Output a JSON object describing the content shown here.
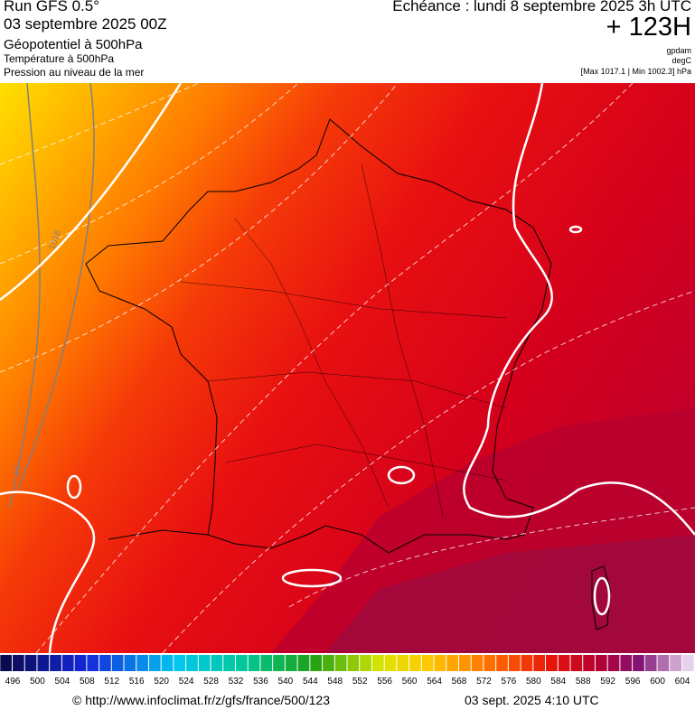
{
  "header": {
    "run": "Run GFS 0.5°",
    "date": "03 septembre 2025 00Z",
    "field1": "Géopotentiel à 500hPa",
    "field2": "Température à 500hPa",
    "field3": "Pression au niveau de la mer",
    "valid": "Echéance : lundi 8 septembre 2025 3h UTC",
    "lead": "+ 123H",
    "unit1": "gpdam",
    "unit2": "degC",
    "range": "[Max 1017.1 | Min 1002.3] hPa"
  },
  "map": {
    "labels": [
      "1016",
      "16"
    ]
  },
  "colorbar": {
    "labels": [
      496,
      500,
      504,
      508,
      512,
      516,
      520,
      524,
      528,
      532,
      536,
      540,
      544,
      548,
      552,
      556,
      560,
      564,
      568,
      572,
      576,
      580,
      584,
      588,
      592,
      596,
      600,
      604
    ]
  },
  "footer": {
    "url": "© http://www.infoclimat.fr/z/gfs/france/500/123",
    "time": "03 sept. 2025  4:10 UTC"
  }
}
